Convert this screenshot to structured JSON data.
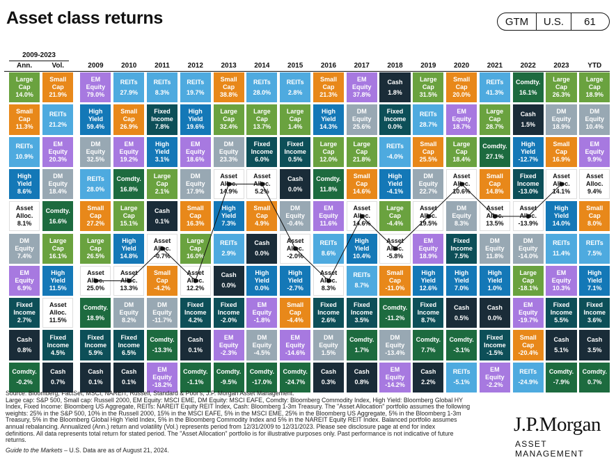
{
  "page": {
    "title": "Asset class returns",
    "tags": [
      "GTM",
      "U.S.",
      "61"
    ],
    "period_label": "2009-2023",
    "notes": [
      "Source: Bloomberg, FactSet, MSCI, NAREIT, Russell, Standard & Poor's, J.P. Morgan Asset Management.",
      "Large cap: S&P 500, Small cap: Russell 2000, EM Equity: MSCI EME, DM Equity: MSCI EAFE, Comdty: Bloomberg Commodity Index, High Yield: Bloomberg Global HY",
      "Index, Fixed Income: Bloomberg US Aggregate, REITs: NAREIT Equity REIT Index, Cash: Bloomberg 1-3m Treasury. The \"Asset Allocation\" portfolio assumes the following",
      "weights: 25% in the S&P 500, 10% in the Russell 2000, 15% in the MSCI EAFE, 5% in the MSCI EME, 25% in the Bloomberg US Aggregate, 5% in the Bloomberg 1-3m",
      "Treasury, 5% in the Bloomberg Global High Yield Index, 5% in the Bloomberg Commodity Index and 5% in the NAREIT Equity REIT Index. Balanced portfolio assumes",
      "annual rebalancing. Annualized (Ann.) return and volatility (Vol.) represents period from 12/31/2009 to 12/31/2023. Please see disclosure page at end for index",
      "definitions. All data represents total return for stated period. The \"Asset Allocation\" portfolio is for illustrative purposes only. Past performance is not indicative of future",
      "returns."
    ],
    "guide_italic": "Guide to the Markets",
    "guide_rest": " – U.S. Data are as of August 21, 2024.",
    "logo": "J.P.Morgan",
    "logo_sub": "ASSET MANAGEMENT"
  },
  "colors": {
    "Large Cap": "#6aa23f",
    "Small Cap": "#e8881a",
    "EM Equity": "#a779e0",
    "REITs": "#4eaadf",
    "DM Equity": "#98a8b3",
    "Cash": "#1a2c38",
    "High Yield": "#1478b7",
    "Fixed Income": "#0d4f58",
    "Comdty.": "#1d6b3f",
    "Asset Alloc.": "#ffffff"
  },
  "chart_data": {
    "type": "table",
    "columns": [
      "Ann.",
      "Vol.",
      "2009",
      "2010",
      "2011",
      "2012",
      "2013",
      "2014",
      "2015",
      "2016",
      "2017",
      "2018",
      "2019",
      "2020",
      "2021",
      "2022",
      "2023",
      "YTD"
    ],
    "rows": [
      [
        {
          "a": "Large Cap",
          "v": "14.0%"
        },
        {
          "a": "Small Cap",
          "v": "21.9%"
        },
        {
          "a": "EM Equity",
          "v": "79.0%"
        },
        {
          "a": "REITs",
          "v": "27.9%"
        },
        {
          "a": "REITs",
          "v": "8.3%"
        },
        {
          "a": "REITs",
          "v": "19.7%"
        },
        {
          "a": "Small Cap",
          "v": "38.8%"
        },
        {
          "a": "REITs",
          "v": "28.0%"
        },
        {
          "a": "REITs",
          "v": "2.8%"
        },
        {
          "a": "Small Cap",
          "v": "21.3%"
        },
        {
          "a": "EM Equity",
          "v": "37.8%"
        },
        {
          "a": "Cash",
          "v": "1.8%"
        },
        {
          "a": "Large Cap",
          "v": "31.5%"
        },
        {
          "a": "Small Cap",
          "v": "20.0%"
        },
        {
          "a": "REITs",
          "v": "41.3%"
        },
        {
          "a": "Comdty.",
          "v": "16.1%"
        },
        {
          "a": "Large Cap",
          "v": "26.3%"
        },
        {
          "a": "Large Cap",
          "v": "18.9%"
        }
      ],
      [
        {
          "a": "Small Cap",
          "v": "11.3%"
        },
        {
          "a": "REITs",
          "v": "21.2%"
        },
        {
          "a": "High Yield",
          "v": "59.4%"
        },
        {
          "a": "Small Cap",
          "v": "26.9%"
        },
        {
          "a": "Fixed Income",
          "v": "7.8%"
        },
        {
          "a": "High Yield",
          "v": "19.6%"
        },
        {
          "a": "Large Cap",
          "v": "32.4%"
        },
        {
          "a": "Large Cap",
          "v": "13.7%"
        },
        {
          "a": "Large Cap",
          "v": "1.4%"
        },
        {
          "a": "High Yield",
          "v": "14.3%"
        },
        {
          "a": "DM Equity",
          "v": "25.6%"
        },
        {
          "a": "Fixed Income",
          "v": "0.0%"
        },
        {
          "a": "REITs",
          "v": "28.7%"
        },
        {
          "a": "EM Equity",
          "v": "18.7%"
        },
        {
          "a": "Large Cap",
          "v": "28.7%"
        },
        {
          "a": "Cash",
          "v": "1.5%"
        },
        {
          "a": "DM Equity",
          "v": "18.9%"
        },
        {
          "a": "DM Equity",
          "v": "10.4%"
        }
      ],
      [
        {
          "a": "REITs",
          "v": "10.9%"
        },
        {
          "a": "EM Equity",
          "v": "20.3%"
        },
        {
          "a": "DM Equity",
          "v": "32.5%"
        },
        {
          "a": "EM Equity",
          "v": "19.2%"
        },
        {
          "a": "High Yield",
          "v": "3.1%"
        },
        {
          "a": "EM Equity",
          "v": "18.6%"
        },
        {
          "a": "DM Equity",
          "v": "23.3%"
        },
        {
          "a": "Fixed Income",
          "v": "6.0%"
        },
        {
          "a": "Fixed Income",
          "v": "0.5%"
        },
        {
          "a": "Large Cap",
          "v": "12.0%"
        },
        {
          "a": "Large Cap",
          "v": "21.8%"
        },
        {
          "a": "REITs",
          "v": "-4.0%"
        },
        {
          "a": "Small Cap",
          "v": "25.5%"
        },
        {
          "a": "Large Cap",
          "v": "18.4%"
        },
        {
          "a": "Comdty.",
          "v": "27.1%"
        },
        {
          "a": "High Yield",
          "v": "-12.7%"
        },
        {
          "a": "Small Cap",
          "v": "16.9%"
        },
        {
          "a": "EM Equity",
          "v": "9.9%"
        }
      ],
      [
        {
          "a": "High Yield",
          "v": "8.6%"
        },
        {
          "a": "DM Equity",
          "v": "18.4%"
        },
        {
          "a": "REITs",
          "v": "28.0%"
        },
        {
          "a": "Comdty.",
          "v": "16.8%"
        },
        {
          "a": "Large Cap",
          "v": "2.1%"
        },
        {
          "a": "DM Equity",
          "v": "17.9%"
        },
        {
          "a": "Asset Alloc.",
          "v": "14.9%"
        },
        {
          "a": "Asset Alloc.",
          "v": "5.2%"
        },
        {
          "a": "Cash",
          "v": "0.0%"
        },
        {
          "a": "Comdty.",
          "v": "11.8%"
        },
        {
          "a": "Small Cap",
          "v": "14.6%"
        },
        {
          "a": "High Yield",
          "v": "-4.1%"
        },
        {
          "a": "DM Equity",
          "v": "22.7%"
        },
        {
          "a": "Asset Alloc.",
          "v": "10.6%"
        },
        {
          "a": "Small Cap",
          "v": "14.8%"
        },
        {
          "a": "Fixed Income",
          "v": "-13.0%"
        },
        {
          "a": "Asset Alloc.",
          "v": "14.1%"
        },
        {
          "a": "Asset Alloc.",
          "v": "9.4%"
        }
      ],
      [
        {
          "a": "Asset Alloc.",
          "v": "8.1%"
        },
        {
          "a": "Comdty.",
          "v": "16.6%"
        },
        {
          "a": "Small Cap",
          "v": "27.2%"
        },
        {
          "a": "Large Cap",
          "v": "15.1%"
        },
        {
          "a": "Cash",
          "v": "0.1%"
        },
        {
          "a": "Small Cap",
          "v": "16.3%"
        },
        {
          "a": "High Yield",
          "v": "7.3%"
        },
        {
          "a": "Small Cap",
          "v": "4.9%"
        },
        {
          "a": "DM Equity",
          "v": "-0.4%"
        },
        {
          "a": "EM Equity",
          "v": "11.6%"
        },
        {
          "a": "Asset Alloc.",
          "v": "14.6%"
        },
        {
          "a": "Large Cap",
          "v": "-4.4%"
        },
        {
          "a": "Asset Alloc.",
          "v": "19.5%"
        },
        {
          "a": "DM Equity",
          "v": "8.3%"
        },
        {
          "a": "Asset Alloc.",
          "v": "13.5%"
        },
        {
          "a": "Asset Alloc.",
          "v": "-13.9%"
        },
        {
          "a": "High Yield",
          "v": "14.0%"
        },
        {
          "a": "Small Cap",
          "v": "8.0%"
        }
      ],
      [
        {
          "a": "DM Equity",
          "v": "7.4%"
        },
        {
          "a": "Large Cap",
          "v": "16.1%"
        },
        {
          "a": "Large Cap",
          "v": "26.5%"
        },
        {
          "a": "High Yield",
          "v": "14.8%"
        },
        {
          "a": "Asset Alloc.",
          "v": "-0.7%"
        },
        {
          "a": "Large Cap",
          "v": "16.0%"
        },
        {
          "a": "REITs",
          "v": "2.9%"
        },
        {
          "a": "Cash",
          "v": "0.0%"
        },
        {
          "a": "Asset Alloc.",
          "v": "-2.0%"
        },
        {
          "a": "REITs",
          "v": "8.6%"
        },
        {
          "a": "High Yield",
          "v": "10.4%"
        },
        {
          "a": "Asset Alloc.",
          "v": "-5.8%"
        },
        {
          "a": "EM Equity",
          "v": "18.9%"
        },
        {
          "a": "Fixed Income",
          "v": "7.5%"
        },
        {
          "a": "DM Equity",
          "v": "11.8%"
        },
        {
          "a": "DM Equity",
          "v": "-14.0%"
        },
        {
          "a": "REITs",
          "v": "11.4%"
        },
        {
          "a": "REITs",
          "v": "7.5%"
        }
      ],
      [
        {
          "a": "EM Equity",
          "v": "6.9%"
        },
        {
          "a": "High Yield",
          "v": "11.5%"
        },
        {
          "a": "Asset Alloc.",
          "v": "25.0%"
        },
        {
          "a": "Asset Alloc.",
          "v": "13.3%"
        },
        {
          "a": "Small Cap",
          "v": "-4.2%"
        },
        {
          "a": "Asset Alloc.",
          "v": "12.2%"
        },
        {
          "a": "Cash",
          "v": "0.0%"
        },
        {
          "a": "High Yield",
          "v": "0.0%"
        },
        {
          "a": "High Yield",
          "v": "-2.7%"
        },
        {
          "a": "Asset Alloc.",
          "v": "8.3%"
        },
        {
          "a": "REITs",
          "v": "8.7%"
        },
        {
          "a": "Small Cap",
          "v": "-11.0%"
        },
        {
          "a": "High Yield",
          "v": "12.6%"
        },
        {
          "a": "High Yield",
          "v": "7.0%"
        },
        {
          "a": "High Yield",
          "v": "1.0%"
        },
        {
          "a": "Large Cap",
          "v": "-18.1%"
        },
        {
          "a": "EM Equity",
          "v": "10.3%"
        },
        {
          "a": "High Yield",
          "v": "7.1%"
        }
      ],
      [
        {
          "a": "Fixed Income",
          "v": "2.7%"
        },
        {
          "a": "Asset Alloc.",
          "v": "11.5%"
        },
        {
          "a": "Comdty.",
          "v": "18.9%"
        },
        {
          "a": "DM Equity",
          "v": "8.2%"
        },
        {
          "a": "DM Equity",
          "v": "-11.7%"
        },
        {
          "a": "Fixed Income",
          "v": "4.2%"
        },
        {
          "a": "Fixed Income",
          "v": "-2.0%"
        },
        {
          "a": "EM Equity",
          "v": "-1.8%"
        },
        {
          "a": "Small Cap",
          "v": "-4.4%"
        },
        {
          "a": "Fixed Income",
          "v": "2.6%"
        },
        {
          "a": "Fixed Income",
          "v": "3.5%"
        },
        {
          "a": "Comdty.",
          "v": "-11.2%"
        },
        {
          "a": "Fixed Income",
          "v": "8.7%"
        },
        {
          "a": "Cash",
          "v": "0.5%"
        },
        {
          "a": "Cash",
          "v": "0.0%"
        },
        {
          "a": "EM Equity",
          "v": "-19.7%"
        },
        {
          "a": "Fixed Income",
          "v": "5.5%"
        },
        {
          "a": "Fixed Income",
          "v": "3.6%"
        }
      ],
      [
        {
          "a": "Cash",
          "v": "0.8%"
        },
        {
          "a": "Fixed Income",
          "v": "4.5%"
        },
        {
          "a": "Fixed Income",
          "v": "5.9%"
        },
        {
          "a": "Fixed Income",
          "v": "6.5%"
        },
        {
          "a": "Comdty.",
          "v": "-13.3%"
        },
        {
          "a": "Cash",
          "v": "0.1%"
        },
        {
          "a": "EM Equity",
          "v": "-2.3%"
        },
        {
          "a": "DM Equity",
          "v": "-4.5%"
        },
        {
          "a": "EM Equity",
          "v": "-14.6%"
        },
        {
          "a": "DM Equity",
          "v": "1.5%"
        },
        {
          "a": "Comdty.",
          "v": "1.7%"
        },
        {
          "a": "DM Equity",
          "v": "-13.4%"
        },
        {
          "a": "Comdty.",
          "v": "7.7%"
        },
        {
          "a": "Comdty.",
          "v": "-3.1%"
        },
        {
          "a": "Fixed Income",
          "v": "-1.5%"
        },
        {
          "a": "Small Cap",
          "v": "-20.4%"
        },
        {
          "a": "Cash",
          "v": "5.1%"
        },
        {
          "a": "Cash",
          "v": "3.5%"
        }
      ],
      [
        {
          "a": "Comdty.",
          "v": "-0.2%"
        },
        {
          "a": "Cash",
          "v": "0.7%"
        },
        {
          "a": "Cash",
          "v": "0.1%"
        },
        {
          "a": "Cash",
          "v": "0.1%"
        },
        {
          "a": "EM Equity",
          "v": "-18.2%"
        },
        {
          "a": "Comdty.",
          "v": "-1.1%"
        },
        {
          "a": "Comdty.",
          "v": "-9.5%"
        },
        {
          "a": "Comdty.",
          "v": "-17.0%"
        },
        {
          "a": "Comdty.",
          "v": "-24.7%"
        },
        {
          "a": "Cash",
          "v": "0.3%"
        },
        {
          "a": "Cash",
          "v": "0.8%"
        },
        {
          "a": "EM Equity",
          "v": "-14.2%"
        },
        {
          "a": "Cash",
          "v": "2.2%"
        },
        {
          "a": "REITs",
          "v": "-5.1%"
        },
        {
          "a": "EM Equity",
          "v": "-2.2%"
        },
        {
          "a": "REITs",
          "v": "-24.9%"
        },
        {
          "a": "Comdty.",
          "v": "-7.9%"
        },
        {
          "a": "Comdty.",
          "v": "0.7%"
        }
      ]
    ]
  }
}
